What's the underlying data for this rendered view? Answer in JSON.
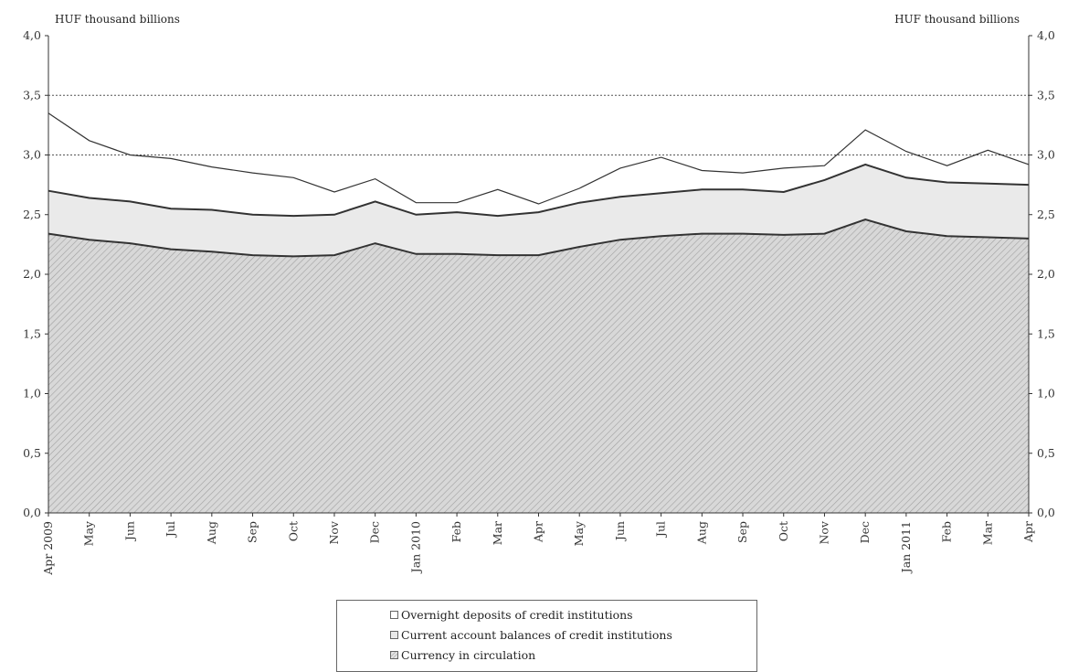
{
  "chart_data": {
    "type": "area",
    "stacked": true,
    "left_axis_label": "HUF thousand billions",
    "right_axis_label": "HUF thousand billions",
    "ylim": [
      0,
      4.0
    ],
    "yticks": [
      "0,0",
      "0,5",
      "1,0",
      "1,5",
      "2,0",
      "2,5",
      "3,0",
      "3,5",
      "4,0"
    ],
    "ytick_values": [
      0,
      0.5,
      1.0,
      1.5,
      2.0,
      2.5,
      3.0,
      3.5,
      4.0
    ],
    "gridlines_dotted": [
      3.0,
      3.5
    ],
    "categories": [
      "Apr 2009",
      "May",
      "Jun",
      "Jul",
      "Aug",
      "Sep",
      "Oct",
      "Nov",
      "Dec",
      "Jan 2010",
      "Feb",
      "Mar",
      "Apr",
      "May",
      "Jun",
      "Jul",
      "Aug",
      "Sep",
      "Oct",
      "Nov",
      "Dec",
      "Jan 2011",
      "Feb",
      "Mar",
      "Apr"
    ],
    "series": [
      {
        "name": "Currency in circulation",
        "values": [
          2.34,
          2.29,
          2.26,
          2.21,
          2.19,
          2.16,
          2.15,
          2.16,
          2.26,
          2.17,
          2.17,
          2.16,
          2.16,
          2.23,
          2.29,
          2.32,
          2.34,
          2.34,
          2.33,
          2.34,
          2.46,
          2.36,
          2.32,
          2.31,
          2.3
        ]
      },
      {
        "name": "Current account balances of credit institutions",
        "values": [
          0.36,
          0.35,
          0.35,
          0.34,
          0.35,
          0.34,
          0.34,
          0.34,
          0.35,
          0.33,
          0.35,
          0.33,
          0.36,
          0.37,
          0.36,
          0.36,
          0.37,
          0.37,
          0.36,
          0.45,
          0.46,
          0.45,
          0.45,
          0.45,
          0.45
        ]
      },
      {
        "name": "Overnight deposits of credit institutions",
        "values": [
          0.65,
          0.48,
          0.39,
          0.42,
          0.36,
          0.35,
          0.32,
          0.19,
          0.19,
          0.1,
          0.08,
          0.22,
          0.07,
          0.12,
          0.24,
          0.3,
          0.16,
          0.14,
          0.2,
          0.12,
          0.29,
          0.22,
          0.14,
          0.28,
          0.17
        ]
      }
    ],
    "legend_order": [
      "Overnight deposits of credit institutions",
      "Current account balances of credit institutions",
      "Currency in circulation"
    ],
    "legend_placement": "bottom-center",
    "colors": {
      "currency_fill": "#d6d6d6",
      "currency_hatch": "#9a9a9a",
      "current_fill": "#eaeaea",
      "overnight_fill": "#ffffff",
      "line": "#333333",
      "grid": "#555555"
    }
  }
}
